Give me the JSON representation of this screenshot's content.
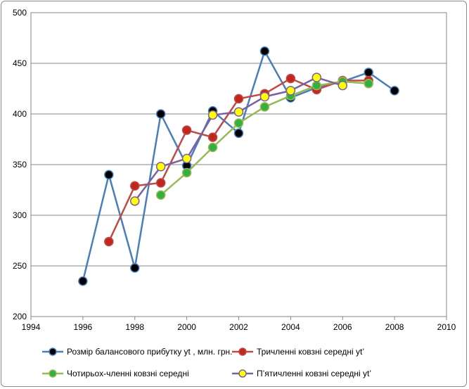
{
  "chart_data": {
    "type": "scatter",
    "xlim": [
      1994,
      2010
    ],
    "ylim": [
      200,
      500
    ],
    "x_ticks": [
      1994,
      1996,
      1998,
      2000,
      2002,
      2004,
      2006,
      2008,
      2010
    ],
    "y_ticks": [
      200,
      250,
      300,
      350,
      400,
      450,
      500
    ],
    "grid": "horizontal",
    "legend_position": "bottom",
    "series": [
      {
        "name": "Розмір балансового прибутку yt , млн. грн.",
        "line_color": "#4a7ebb",
        "marker_color": "#000000",
        "x": [
          1996,
          1997,
          1998,
          1999,
          2000,
          2001,
          2002,
          2003,
          2004,
          2005,
          2006,
          2007,
          2008
        ],
        "y": [
          235,
          340,
          248,
          400,
          349,
          403,
          381,
          462,
          416,
          426,
          432,
          441,
          423
        ]
      },
      {
        "name": "Тричленні ковзні середні yt’",
        "line_color": "#be4b48",
        "marker_color": "#c0281e",
        "x": [
          1997,
          1998,
          1999,
          2000,
          2001,
          2002,
          2003,
          2004,
          2005,
          2006,
          2007
        ],
        "y": [
          274,
          329,
          332,
          384,
          377,
          415,
          420,
          435,
          424,
          433,
          433
        ]
      },
      {
        "name": "Чотирьох-членні ковзні середні",
        "line_color": "#98b954",
        "marker_color": "#33b040",
        "x": [
          1999,
          2000,
          2001,
          2002,
          2003,
          2004,
          2005,
          2006,
          2007
        ],
        "y": [
          320,
          342,
          367,
          391,
          407,
          418,
          428,
          432,
          430
        ]
      },
      {
        "name": "П’ятичленні ковзні середні yt’",
        "line_color": "#7d60a0",
        "marker_color": "#ffff00",
        "x": [
          1998,
          1999,
          2000,
          2001,
          2002,
          2003,
          2004,
          2005,
          2006
        ],
        "y": [
          314,
          348,
          356,
          399,
          402,
          417,
          423,
          436,
          428
        ]
      }
    ]
  }
}
